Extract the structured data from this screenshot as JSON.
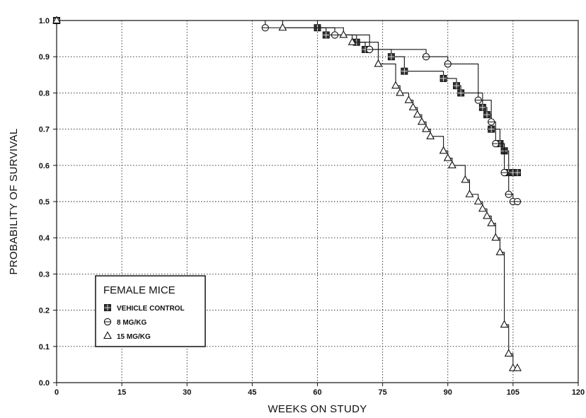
{
  "chart_data": {
    "type": "line",
    "subtype": "kaplan-meier step",
    "title": "",
    "xlabel": "WEEKS ON STUDY",
    "ylabel": "PROBABILITY OF SURVIVAL",
    "xlim": [
      0,
      120
    ],
    "ylim": [
      0,
      1.0
    ],
    "x_ticks": [
      0,
      15,
      30,
      45,
      60,
      75,
      90,
      105,
      120
    ],
    "y_ticks": [
      0.0,
      0.1,
      0.2,
      0.3,
      0.4,
      0.5,
      0.6,
      0.7,
      0.8,
      0.9,
      1.0
    ],
    "y_tick_labels": [
      "0.0",
      "0.1",
      "0.2",
      "0.3",
      "0.4",
      "0.5",
      "0.6",
      "0.7",
      "0.8",
      "0.9",
      "1.0"
    ],
    "grid": true,
    "legend": {
      "title": "FEMALE MICE",
      "position": "lower-left"
    },
    "series": [
      {
        "name": "VEHICLE CONTROL",
        "marker": "hatched-square",
        "points": [
          [
            0,
            1.0
          ],
          [
            60,
            0.98
          ],
          [
            62,
            0.96
          ],
          [
            69,
            0.94
          ],
          [
            71,
            0.92
          ],
          [
            77,
            0.9
          ],
          [
            80,
            0.86
          ],
          [
            89,
            0.84
          ],
          [
            92,
            0.82
          ],
          [
            93,
            0.8
          ],
          [
            98,
            0.76
          ],
          [
            99,
            0.74
          ],
          [
            100,
            0.7
          ],
          [
            102,
            0.66
          ],
          [
            103,
            0.64
          ],
          [
            104,
            0.58
          ],
          [
            105,
            0.58
          ],
          [
            106,
            0.58
          ]
        ]
      },
      {
        "name": "8 MG/KG",
        "marker": "circle",
        "points": [
          [
            0,
            1.0
          ],
          [
            48,
            0.98
          ],
          [
            64,
            0.96
          ],
          [
            72,
            0.92
          ],
          [
            85,
            0.9
          ],
          [
            90,
            0.88
          ],
          [
            97,
            0.78
          ],
          [
            100,
            0.72
          ],
          [
            101,
            0.66
          ],
          [
            103,
            0.58
          ],
          [
            104,
            0.52
          ],
          [
            105,
            0.5
          ],
          [
            106,
            0.5
          ]
        ]
      },
      {
        "name": "15 MG/KG",
        "marker": "triangle",
        "points": [
          [
            0,
            1.0
          ],
          [
            52,
            0.98
          ],
          [
            66,
            0.96
          ],
          [
            68,
            0.94
          ],
          [
            74,
            0.88
          ],
          [
            78,
            0.82
          ],
          [
            79,
            0.8
          ],
          [
            81,
            0.78
          ],
          [
            82,
            0.76
          ],
          [
            83,
            0.74
          ],
          [
            84,
            0.72
          ],
          [
            85,
            0.7
          ],
          [
            86,
            0.68
          ],
          [
            89,
            0.64
          ],
          [
            90,
            0.62
          ],
          [
            91,
            0.6
          ],
          [
            94,
            0.56
          ],
          [
            95,
            0.52
          ],
          [
            97,
            0.5
          ],
          [
            98,
            0.48
          ],
          [
            99,
            0.46
          ],
          [
            100,
            0.44
          ],
          [
            101,
            0.4
          ],
          [
            102,
            0.36
          ],
          [
            103,
            0.16
          ],
          [
            104,
            0.08
          ],
          [
            105,
            0.04
          ],
          [
            106,
            0.04
          ]
        ]
      }
    ]
  }
}
